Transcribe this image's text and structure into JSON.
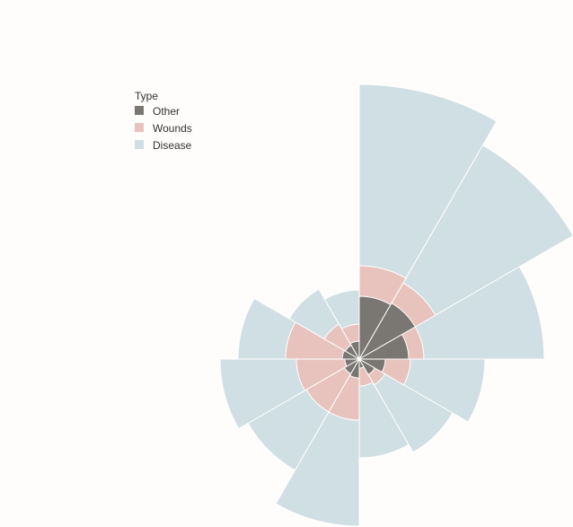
{
  "chart_data": {
    "type": "polar-area",
    "title": "",
    "legend": {
      "title": "Type",
      "placement": "top-left",
      "entries": [
        {
          "name": "Other",
          "color": "#7a7772"
        },
        {
          "name": "Wounds",
          "color": "#e8c3bd"
        },
        {
          "name": "Disease",
          "color": "#d0dfe3"
        }
      ]
    },
    "segments": 12,
    "start_angle_deg": 0,
    "direction": "clockwise",
    "series": [
      {
        "name": "Disease",
        "color": "#d0dfe3",
        "radii": [
          306,
          275,
          206,
          140,
          120,
          110,
          186,
          143,
          155,
          135,
          90,
          77
        ]
      },
      {
        "name": "Wounds",
        "color": "#e8c3bd",
        "radii": [
          104,
          98,
          72,
          57,
          33,
          30,
          68,
          68,
          70,
          82,
          45,
          39
        ]
      },
      {
        "name": "Other",
        "color": "#7a7772",
        "radii": [
          70,
          72,
          55,
          29,
          20,
          10,
          21,
          19,
          16,
          19,
          18,
          20
        ]
      }
    ]
  }
}
